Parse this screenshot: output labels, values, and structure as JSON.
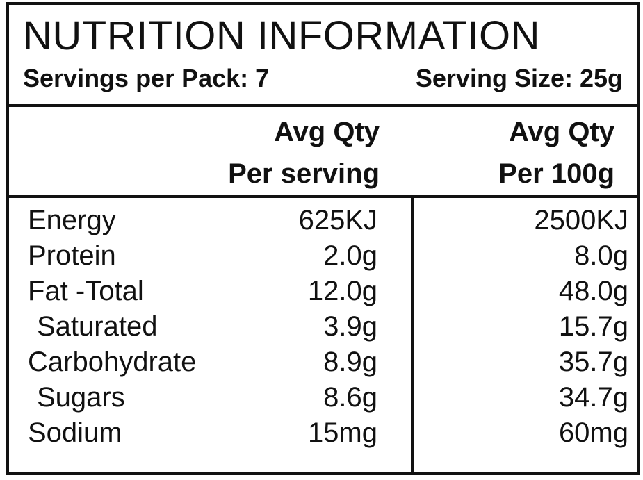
{
  "label": {
    "title": "NUTRITION INFORMATION",
    "servings_per_pack": "Servings per Pack: 7",
    "serving_size": "Serving Size: 25g",
    "columns": [
      {
        "line1": "Avg Qty",
        "line2": "Per serving"
      },
      {
        "line1": "Avg Qty",
        "line2": "Per 100g"
      }
    ],
    "rows": [
      {
        "name": "Energy",
        "per_serving": "625KJ",
        "per_100g": "2500KJ"
      },
      {
        "name": "Protein",
        "per_serving": "2.0g",
        "per_100g": "8.0g"
      },
      {
        "name": "Fat -Total",
        "per_serving": "12.0g",
        "per_100g": "48.0g"
      },
      {
        "name": "Saturated",
        "per_serving": "3.9g",
        "per_100g": "15.7g"
      },
      {
        "name": "Carbohydrate",
        "per_serving": "8.9g",
        "per_100g": "35.7g"
      },
      {
        "name": "Sugars",
        "per_serving": "8.6g",
        "per_100g": "34.7g"
      },
      {
        "name": "Sodium",
        "per_serving": "15mg",
        "per_100g": "60mg"
      }
    ]
  }
}
